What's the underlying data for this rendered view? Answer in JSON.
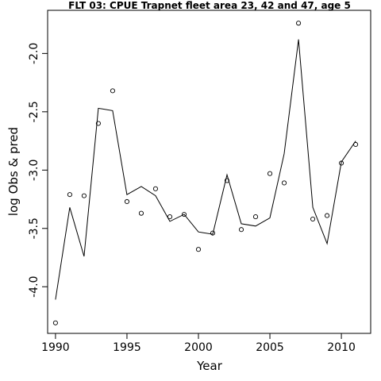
{
  "chart_data": {
    "type": "line",
    "title": "FLT 03: CPUE Trapnet fleet area 23, 42 and 47, age 5",
    "xlabel": "Year",
    "ylabel": "log Obs & pred",
    "xlim": [
      1989.45,
      2012.05
    ],
    "ylim": [
      -4.4,
      -1.63
    ],
    "x_ticks": [
      1990,
      1995,
      2000,
      2005,
      2010
    ],
    "x_tick_labels": [
      "1990",
      "1995",
      "2000",
      "2005",
      "2010"
    ],
    "y_ticks": [
      -4.0,
      -3.5,
      -3.0,
      -2.5,
      -2.0
    ],
    "y_tick_labels": [
      "-4.0",
      "-3.5",
      "-3.0",
      "-2.5",
      "-2.0"
    ],
    "grid": false,
    "legend": "none",
    "series": [
      {
        "kind": "points",
        "x": [
          1990,
          1991,
          1992,
          1993,
          1994,
          1995,
          1996,
          1997,
          1998,
          1999,
          2000,
          2001,
          2002,
          2003,
          2004,
          2005,
          2006,
          2007,
          2008,
          2009,
          2010,
          2011
        ],
        "y": [
          -4.31,
          -3.21,
          -3.22,
          -2.6,
          -2.32,
          -3.27,
          -3.37,
          -3.16,
          -3.4,
          -3.38,
          -3.68,
          -3.54,
          -3.09,
          -3.51,
          -3.4,
          -3.03,
          -3.11,
          -1.74,
          -3.42,
          -3.39,
          -2.94,
          -2.78
        ]
      },
      {
        "kind": "line",
        "x": [
          1990,
          1991,
          1992,
          1993,
          1994,
          1995,
          1996,
          1997,
          1998,
          1999,
          2000,
          2001,
          2002,
          2003,
          2004,
          2005,
          2006,
          2007,
          2008,
          2009,
          2010,
          2011
        ],
        "y": [
          -4.11,
          -3.32,
          -3.74,
          -2.47,
          -2.49,
          -3.21,
          -3.14,
          -3.22,
          -3.44,
          -3.38,
          -3.53,
          -3.55,
          -3.04,
          -3.46,
          -3.48,
          -3.41,
          -2.86,
          -1.88,
          -3.32,
          -3.63,
          -2.93,
          -2.75
        ]
      }
    ]
  }
}
